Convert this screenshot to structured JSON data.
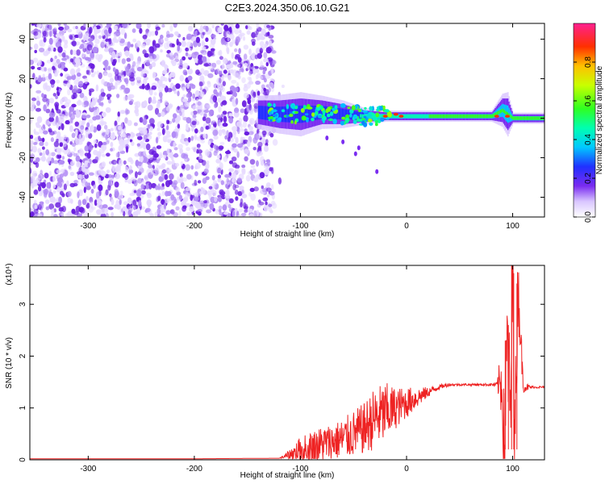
{
  "title": "C2E3.2024.350.06.10.G21",
  "colors": {
    "snr_line": "#ee2222",
    "scatter_purple": "#6a1ee0",
    "axis": "#000000"
  },
  "chart_data": [
    {
      "type": "heatmap",
      "title": "",
      "xlabel": "Height of straight line (km)",
      "ylabel": "Frequency (Hz)",
      "xlim": [
        -355,
        130
      ],
      "ylim": [
        -50,
        48
      ],
      "x_ticks": [
        -300,
        -200,
        -100,
        0,
        100
      ],
      "y_ticks": [
        -40,
        -20,
        0,
        20,
        40
      ],
      "x_tick_labels": [
        "-300",
        "-200",
        "-100",
        "0",
        "100"
      ],
      "y_tick_labels": [
        "-40",
        "-20",
        "0",
        "20",
        "40"
      ],
      "noise_region_x": [
        -355,
        -125
      ],
      "signal_band": {
        "x": [
          -140,
          -120,
          -100,
          -80,
          -60,
          -40,
          -20,
          0,
          20,
          40,
          60,
          80,
          90,
          95,
          100,
          110,
          130
        ],
        "center_hz": [
          3,
          2,
          2,
          3,
          2,
          1,
          1,
          1,
          1,
          1,
          1,
          1,
          4,
          2,
          0,
          0,
          0
        ],
        "halfwidth_hz": [
          6,
          7,
          8,
          6,
          5,
          3,
          2,
          2,
          2,
          2,
          2,
          2,
          6,
          8,
          2,
          2,
          2
        ]
      },
      "colorbar": {
        "label": "Normalized spectral amplitude",
        "range": [
          0,
          1
        ],
        "ticks": [
          0.0,
          0.2,
          0.4,
          0.6,
          0.8
        ],
        "tick_labels": [
          "0.0",
          "0.2",
          "0.4",
          "0.6",
          "0.8"
        ]
      }
    },
    {
      "type": "line",
      "title": "",
      "xlabel": "Height of straight line (km)",
      "ylabel": "SNR (10 * v/v)",
      "multiplier_label": "(x10⁴)",
      "xlim": [
        -355,
        130
      ],
      "ylim": [
        0,
        3.75
      ],
      "x_ticks": [
        -300,
        -200,
        -100,
        0,
        100
      ],
      "y_ticks": [
        0,
        1,
        2,
        3
      ],
      "x_tick_labels": [
        "-300",
        "-200",
        "-100",
        "0",
        "100"
      ],
      "y_tick_labels": [
        "0",
        "1",
        "2",
        "3"
      ],
      "series": [
        {
          "x": [
            -355,
            -300,
            -200,
            -120,
            -110,
            -100,
            -90,
            -80,
            -70,
            -60,
            -50,
            -40,
            -30,
            -20,
            -10,
            0,
            10,
            20,
            30,
            40,
            50,
            60,
            70,
            80,
            85,
            90,
            92,
            95,
            98,
            100,
            102,
            105,
            110,
            120,
            130
          ],
          "y": [
            0.02,
            0.02,
            0.02,
            0.03,
            0.1,
            0.2,
            0.25,
            0.3,
            0.35,
            0.4,
            0.5,
            0.6,
            0.8,
            0.9,
            1.0,
            1.1,
            1.2,
            1.3,
            1.4,
            1.45,
            1.45,
            1.45,
            1.45,
            1.45,
            1.45,
            1.5,
            0.3,
            2.3,
            0.8,
            3.7,
            0.3,
            3.4,
            1.4,
            1.4,
            1.4
          ],
          "noise_amplitude": [
            0,
            0,
            0,
            0,
            0.1,
            0.25,
            0.3,
            0.35,
            0.35,
            0.4,
            0.45,
            0.5,
            0.6,
            0.6,
            0.4,
            0.3,
            0.2,
            0.1,
            0.05,
            0.03,
            0.02,
            0.02,
            0.02,
            0.03,
            0.05,
            0.8,
            0.9,
            1.2,
            1.2,
            1.2,
            1.0,
            0.8,
            0.1,
            0.02,
            0.02
          ]
        }
      ]
    }
  ]
}
